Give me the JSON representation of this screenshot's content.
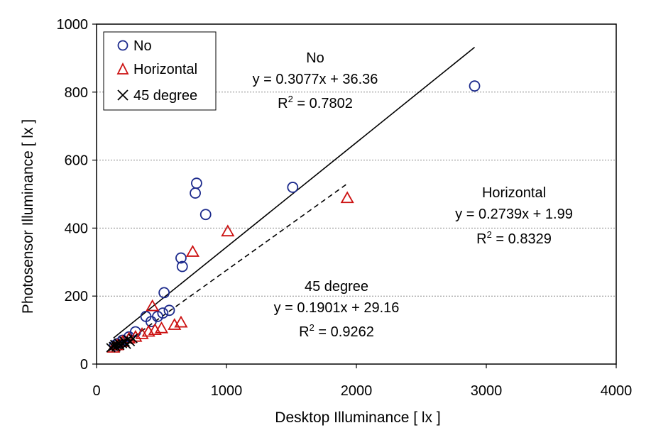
{
  "chart_data": {
    "type": "scatter",
    "xlabel": "Desktop Illuminance [ lx ]",
    "ylabel": "Photosensor Illuminance [ lx ]",
    "xlim": [
      0,
      4000
    ],
    "ylim": [
      0,
      1000
    ],
    "xticks": [
      "0",
      "1000",
      "2000",
      "3000",
      "4000"
    ],
    "yticks": [
      "0",
      "200",
      "400",
      "600",
      "800",
      "1000"
    ],
    "grid": "horizontal dotted",
    "legend_position": "top-left",
    "series": [
      {
        "name": "No",
        "marker": "circle",
        "color": "#1c2a8c",
        "points": [
          [
            2910,
            818
          ],
          [
            1510,
            520
          ],
          [
            770,
            532
          ],
          [
            760,
            503
          ],
          [
            840,
            440
          ],
          [
            650,
            312
          ],
          [
            660,
            287
          ],
          [
            520,
            210
          ],
          [
            560,
            158
          ],
          [
            510,
            150
          ],
          [
            470,
            140
          ],
          [
            380,
            140
          ],
          [
            420,
            125
          ],
          [
            300,
            95
          ],
          [
            250,
            80
          ],
          [
            200,
            70
          ],
          [
            160,
            60
          ],
          [
            140,
            55
          ]
        ]
      },
      {
        "name": "Horizontal",
        "marker": "triangle",
        "color": "#cc1111",
        "points": [
          [
            1930,
            488
          ],
          [
            1010,
            390
          ],
          [
            740,
            330
          ],
          [
            430,
            170
          ],
          [
            650,
            122
          ],
          [
            600,
            115
          ],
          [
            500,
            105
          ],
          [
            450,
            100
          ],
          [
            400,
            95
          ],
          [
            350,
            88
          ],
          [
            300,
            80
          ],
          [
            250,
            75
          ],
          [
            200,
            65
          ],
          [
            160,
            55
          ],
          [
            130,
            48
          ]
        ]
      },
      {
        "name": "45 degree",
        "marker": "x",
        "color": "#000000",
        "points": [
          [
            110,
            48
          ],
          [
            130,
            52
          ],
          [
            140,
            58
          ],
          [
            160,
            56
          ],
          [
            170,
            62
          ],
          [
            180,
            55
          ],
          [
            200,
            60
          ],
          [
            210,
            68
          ],
          [
            220,
            65
          ],
          [
            230,
            58
          ],
          [
            240,
            72
          ],
          [
            260,
            66
          ],
          [
            280,
            75
          ],
          [
            150,
            50
          ]
        ]
      }
    ],
    "trendlines": [
      {
        "series": "No",
        "style": "solid",
        "slope": 0.3077,
        "intercept": 36.36,
        "x_range": [
          130,
          2910
        ]
      },
      {
        "series": "Horizontal",
        "style": "dashed",
        "slope": 0.2739,
        "intercept": 1.99,
        "x_range": [
          130,
          1930
        ]
      },
      {
        "series": "45 degree",
        "style": "solid",
        "slope": 0.1901,
        "intercept": 29.16,
        "x_range": [
          110,
          290
        ]
      }
    ],
    "annotations": [
      {
        "id": "no",
        "lines": [
          "No",
          "y = 0.3077x + 36.36",
          "R2 = 0.7802"
        ]
      },
      {
        "id": "horizontal",
        "lines": [
          "Horizontal",
          "y = 0.2739x + 1.99",
          "R2 = 0.8329"
        ]
      },
      {
        "id": "deg45",
        "lines": [
          "45 degree",
          "y = 0.1901x + 29.16",
          "R2 = 0.9262"
        ]
      }
    ]
  }
}
